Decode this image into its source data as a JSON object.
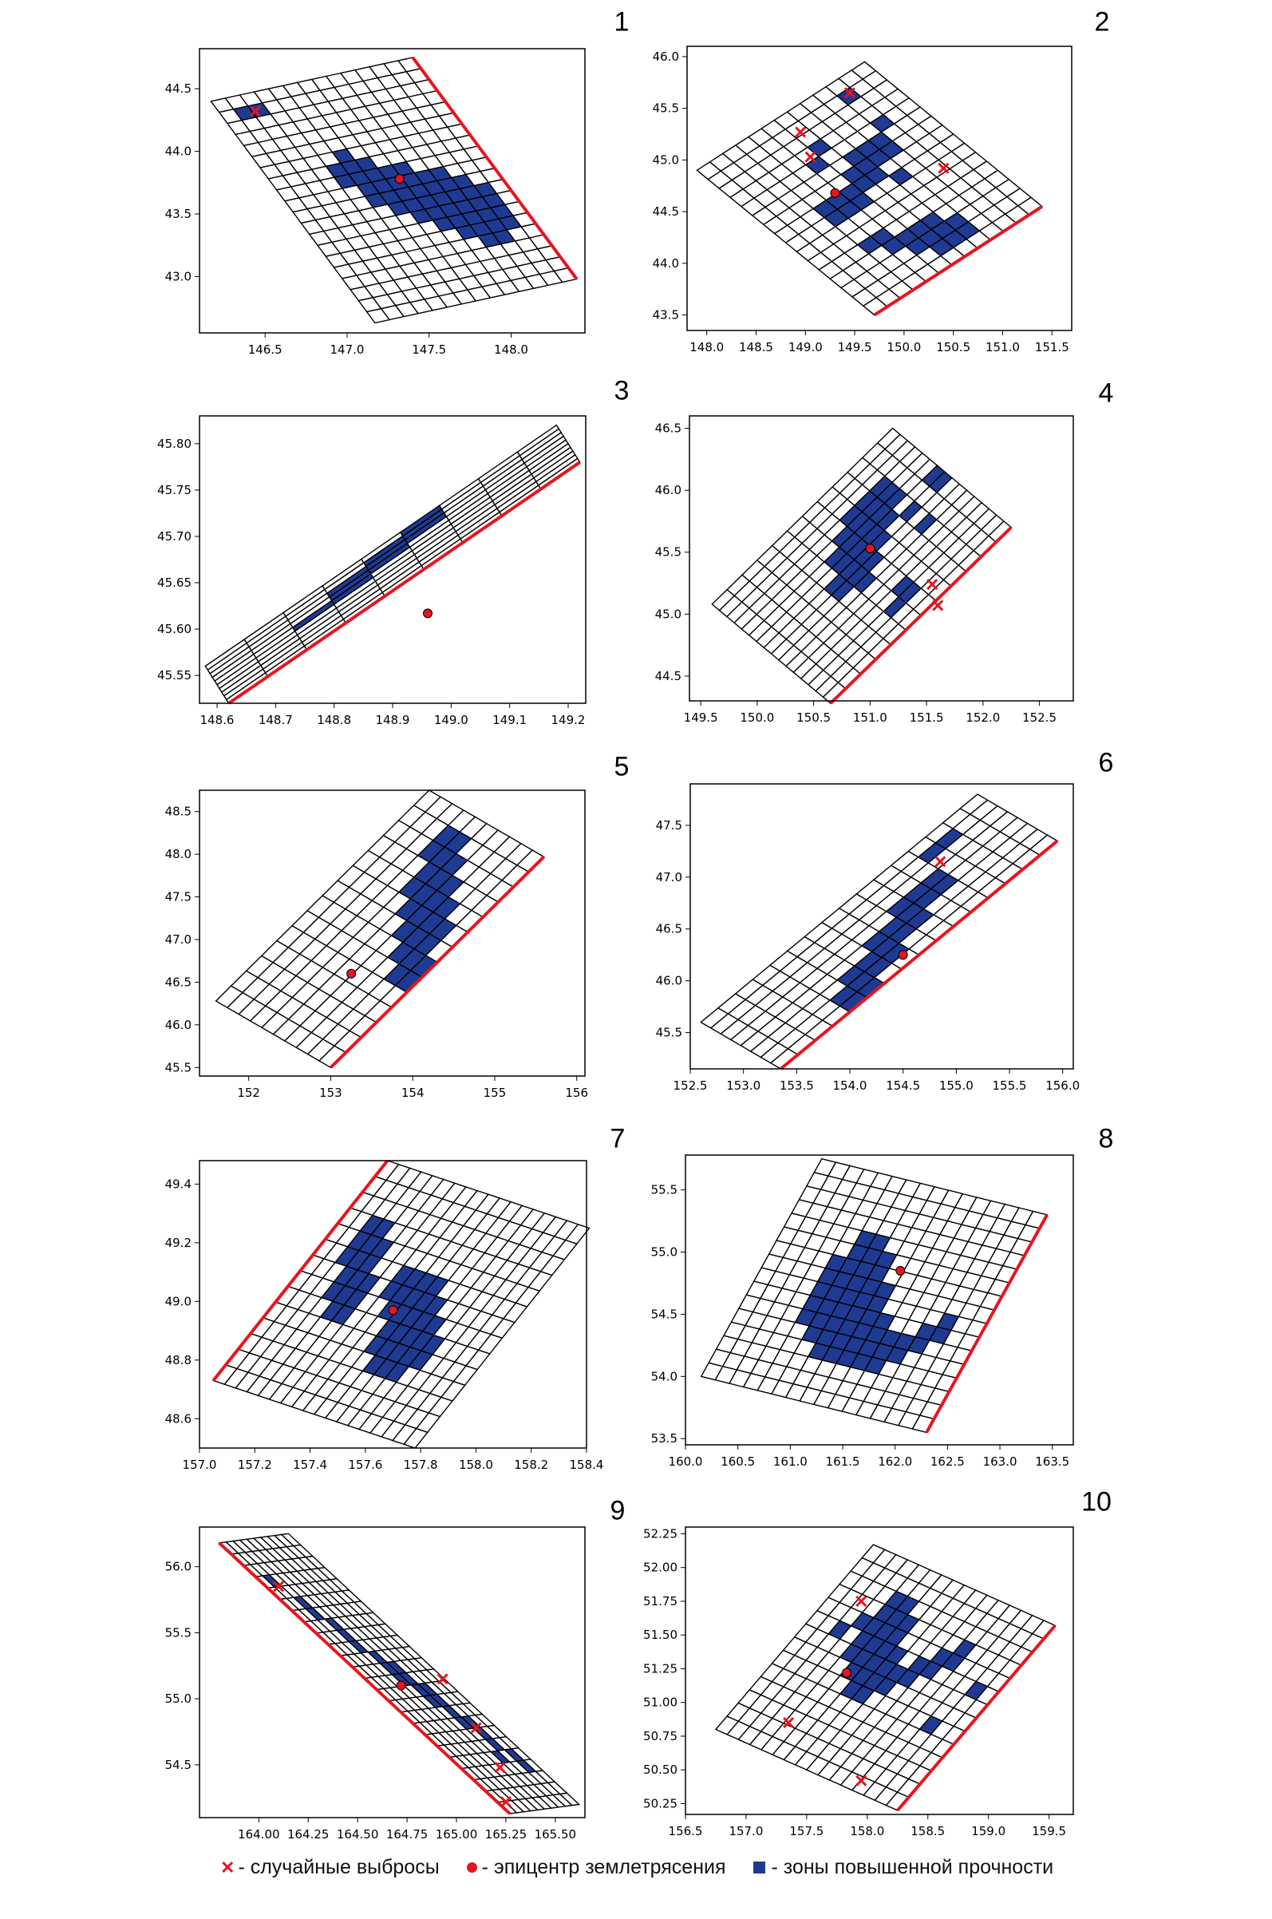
{
  "colors": {
    "zone": "#1f3a93",
    "fault": "#e8141e",
    "epicenter": "#e8141e",
    "outlier": "#e8141e",
    "grid": "#000000"
  },
  "legend": {
    "outliers": "- случайные выбросы",
    "epicenter": "- эпицентр землетрясения",
    "zones": "- зоны повышенной прочности"
  },
  "chart_data": [
    {
      "type": "heatmap",
      "label": "1",
      "xlim": [
        146.1,
        148.45
      ],
      "ylim": [
        42.55,
        44.82
      ],
      "xticks": [
        "146.5",
        "147.0",
        "147.5",
        "148.0"
      ],
      "yticks": [
        "43.0",
        "43.5",
        "44.0",
        "44.5"
      ],
      "grid": {
        "origin": [
          146.17,
          44.4
        ],
        "col_end": [
          147.4,
          44.75
        ],
        "row_end": [
          147.17,
          42.63
        ],
        "rows": 20,
        "cols": 14
      },
      "fault_edge": "col_end-far",
      "epicenter": [
        147.32,
        43.78
      ],
      "outliers": [
        [
          146.44,
          44.32
        ]
      ],
      "zone_cells": [
        [
          1,
          1,
          2
        ],
        [
          6,
          5,
          5
        ],
        [
          7,
          4,
          6
        ],
        [
          8,
          4,
          8
        ],
        [
          9,
          5,
          10
        ],
        [
          10,
          5,
          11
        ],
        [
          11,
          6,
          12
        ],
        [
          12,
          7,
          12
        ],
        [
          13,
          8,
          12
        ],
        [
          14,
          9,
          12
        ],
        [
          15,
          10,
          11
        ]
      ]
    },
    {
      "type": "heatmap",
      "label": "2",
      "xlim": [
        147.8,
        151.7
      ],
      "ylim": [
        43.35,
        46.1
      ],
      "xticks": [
        "148.0",
        "148.5",
        "149.0",
        "149.5",
        "150.0",
        "150.5",
        "151.0",
        "151.5"
      ],
      "yticks": [
        "43.5",
        "44.0",
        "44.5",
        "45.0",
        "45.5",
        "46.0"
      ],
      "grid": {
        "origin": [
          147.9,
          44.9
        ],
        "col_end": [
          149.6,
          45.95
        ],
        "row_end": [
          149.7,
          43.5
        ],
        "rows": 16,
        "cols": 13
      },
      "fault_edge": "row_end-far",
      "epicenter": [
        149.3,
        44.68
      ],
      "outliers": [
        [
          149.45,
          45.65
        ],
        [
          148.95,
          45.27
        ],
        [
          149.05,
          45.03
        ],
        [
          150.4,
          44.92
        ]
      ],
      "zone_cells": [
        [
          1,
          10,
          10
        ],
        [
          3,
          6,
          6
        ],
        [
          4,
          5,
          5
        ],
        [
          4,
          10,
          10
        ],
        [
          5,
          7,
          9
        ],
        [
          6,
          6,
          9
        ],
        [
          7,
          3,
          7
        ],
        [
          8,
          3,
          5
        ],
        [
          8,
          8,
          8
        ],
        [
          11,
          3,
          4
        ],
        [
          12,
          4,
          7
        ],
        [
          13,
          5,
          8
        ],
        [
          14,
          6,
          8
        ]
      ]
    },
    {
      "type": "heatmap",
      "label": "3",
      "xlim": [
        148.57,
        149.23
      ],
      "ylim": [
        45.52,
        45.83
      ],
      "xticks": [
        "148.6",
        "148.7",
        "148.8",
        "148.9",
        "149.0",
        "149.1",
        "149.2"
      ],
      "yticks": [
        "45.55",
        "45.60",
        "45.65",
        "45.70",
        "45.75",
        "45.80"
      ],
      "grid": {
        "origin": [
          148.58,
          45.56
        ],
        "col_end": [
          149.18,
          45.82
        ],
        "row_end": [
          148.62,
          45.52
        ],
        "rows": 10,
        "cols": 9
      },
      "fault_edge": "row_end-far",
      "epicenter": [
        148.96,
        45.617
      ],
      "outliers": [],
      "zone_cells": [
        [
          0,
          5,
          5
        ],
        [
          1,
          4,
          5
        ],
        [
          2,
          3,
          5
        ],
        [
          3,
          3,
          4
        ],
        [
          4,
          2,
          3
        ]
      ]
    },
    {
      "type": "heatmap",
      "label": "4",
      "xlim": [
        149.4,
        152.8
      ],
      "ylim": [
        44.3,
        46.6
      ],
      "xticks": [
        "149.5",
        "150.0",
        "150.5",
        "151.0",
        "151.5",
        "152.0",
        "152.5"
      ],
      "yticks": [
        "44.5",
        "45.0",
        "45.5",
        "46.0",
        "46.5"
      ],
      "grid": {
        "origin": [
          149.6,
          45.08
        ],
        "col_end": [
          151.2,
          46.5
        ],
        "row_end": [
          150.65,
          44.28
        ],
        "rows": 16,
        "cols": 12
      },
      "fault_edge": "row_end-far",
      "epicenter": [
        151.0,
        45.53
      ],
      "outliers": [
        [
          151.55,
          45.24
        ],
        [
          151.6,
          45.07
        ]
      ],
      "zone_cells": [
        [
          3,
          7,
          9
        ],
        [
          4,
          6,
          9
        ],
        [
          5,
          5,
          9
        ],
        [
          6,
          5,
          8
        ],
        [
          7,
          4,
          7
        ],
        [
          8,
          4,
          6
        ],
        [
          9,
          5,
          5
        ],
        [
          7,
          9,
          9
        ],
        [
          9,
          9,
          9
        ],
        [
          12,
          6,
          6
        ],
        [
          13,
          5,
          6
        ],
        [
          6,
          11,
          11
        ],
        [
          7,
          11,
          11
        ]
      ]
    },
    {
      "type": "heatmap",
      "label": "5",
      "xlim": [
        151.4,
        156.1
      ],
      "ylim": [
        45.4,
        48.75
      ],
      "xticks": [
        "152",
        "153",
        "154",
        "155",
        "156"
      ],
      "yticks": [
        "45.5",
        "46.0",
        "46.5",
        "47.0",
        "47.5",
        "48.0",
        "48.5"
      ],
      "grid": {
        "origin": [
          151.6,
          46.28
        ],
        "col_end": [
          154.2,
          48.75
        ],
        "row_end": [
          153.0,
          45.5
        ],
        "rows": 10,
        "cols": 14
      },
      "fault_edge": "row_end-far",
      "epicenter": [
        153.25,
        46.6
      ],
      "outliers": [],
      "zone_cells": [
        [
          3,
          11,
          12
        ],
        [
          4,
          9,
          12
        ],
        [
          5,
          8,
          11
        ],
        [
          6,
          7,
          10
        ],
        [
          7,
          6,
          9
        ],
        [
          8,
          5,
          8
        ],
        [
          9,
          5,
          6
        ]
      ]
    },
    {
      "type": "heatmap",
      "label": "6",
      "xlim": [
        152.5,
        156.1
      ],
      "ylim": [
        45.15,
        47.9
      ],
      "xticks": [
        "152.5",
        "153.0",
        "153.5",
        "154.0",
        "154.5",
        "155.0",
        "155.5",
        "156.0"
      ],
      "yticks": [
        "45.5",
        "46.0",
        "46.5",
        "47.0",
        "47.5"
      ],
      "grid": {
        "origin": [
          152.6,
          45.6
        ],
        "col_end": [
          155.2,
          47.8
        ],
        "row_end": [
          153.35,
          45.15
        ],
        "rows": 8,
        "cols": 16
      },
      "fault_edge": "row_end-far",
      "epicenter": [
        154.5,
        46.25
      ],
      "outliers": [
        [
          154.85,
          47.15
        ]
      ],
      "zone_cells": [
        [
          1,
          12,
          13
        ],
        [
          3,
          9,
          11
        ],
        [
          4,
          7,
          11
        ],
        [
          5,
          5,
          9
        ],
        [
          6,
          4,
          7
        ],
        [
          7,
          4,
          5
        ]
      ]
    },
    {
      "type": "heatmap",
      "label": "7",
      "xlim": [
        157.0,
        158.4
      ],
      "ylim": [
        48.5,
        49.48
      ],
      "xticks": [
        "157.0",
        "157.2",
        "157.4",
        "157.6",
        "157.8",
        "158.0",
        "158.2",
        "158.4"
      ],
      "yticks": [
        "48.6",
        "48.8",
        "49.0",
        "49.2",
        "49.4"
      ],
      "grid": {
        "origin": [
          157.05,
          48.73
        ],
        "col_end": [
          157.68,
          49.48
        ],
        "row_end": [
          157.78,
          48.5
        ],
        "rows": 18,
        "cols": 14
      },
      "fault_edge": "origin-col_end",
      "epicenter": [
        157.7,
        48.97
      ],
      "outliers": [],
      "zone_cells": [
        [
          2,
          8,
          10
        ],
        [
          3,
          6,
          10
        ],
        [
          4,
          5,
          9
        ],
        [
          5,
          5,
          7
        ],
        [
          7,
          7,
          8
        ],
        [
          8,
          6,
          8
        ],
        [
          9,
          4,
          8
        ],
        [
          10,
          3,
          8
        ],
        [
          11,
          3,
          7
        ],
        [
          12,
          3,
          6
        ],
        [
          13,
          4,
          5
        ]
      ]
    },
    {
      "type": "heatmap",
      "label": "8",
      "xlim": [
        160.0,
        163.7
      ],
      "ylim": [
        53.45,
        55.78
      ],
      "xticks": [
        "160.0",
        "160.5",
        "161.0",
        "161.5",
        "162.0",
        "162.5",
        "163.0",
        "163.5"
      ],
      "yticks": [
        "53.5",
        "54.0",
        "54.5",
        "55.0",
        "55.5"
      ],
      "grid": {
        "origin": [
          160.15,
          54.0
        ],
        "col_end": [
          161.3,
          55.75
        ],
        "row_end": [
          162.3,
          53.55
        ],
        "rows": 16,
        "cols": 16
      },
      "fault_edge": "row_end-far",
      "epicenter": [
        162.05,
        54.85
      ],
      "outliers": [],
      "zone_cells": [
        [
          4,
          5,
          9
        ],
        [
          5,
          4,
          11
        ],
        [
          6,
          3,
          11
        ],
        [
          7,
          3,
          10
        ],
        [
          8,
          3,
          8
        ],
        [
          9,
          3,
          6
        ],
        [
          10,
          3,
          5
        ],
        [
          11,
          4,
          5
        ],
        [
          12,
          5,
          6
        ],
        [
          13,
          6,
          7
        ]
      ]
    },
    {
      "type": "heatmap",
      "label": "9",
      "xlim": [
        163.7,
        165.65
      ],
      "ylim": [
        54.1,
        56.3
      ],
      "xticks": [
        "164.00",
        "164.25",
        "164.50",
        "164.75",
        "165.00",
        "165.25",
        "165.50"
      ],
      "yticks": [
        "54.5",
        "55.0",
        "55.5",
        "56.0"
      ],
      "grid": {
        "origin": [
          163.8,
          56.18
        ],
        "col_end": [
          165.27,
          54.13
        ],
        "row_end": [
          164.15,
          56.25
        ],
        "rows": 10,
        "cols": 24
      },
      "fault_edge": "origin-col_end",
      "epicenter": [
        164.72,
        55.1
      ],
      "outliers": [
        [
          164.1,
          55.85
        ],
        [
          164.93,
          55.15
        ],
        [
          165.1,
          54.78
        ],
        [
          165.22,
          54.48
        ],
        [
          165.25,
          54.22
        ]
      ],
      "zone_cells": [
        [
          1,
          3,
          3
        ],
        [
          2,
          5,
          6
        ],
        [
          3,
          7,
          9
        ],
        [
          4,
          10,
          12
        ],
        [
          5,
          11,
          14
        ],
        [
          6,
          13,
          16
        ],
        [
          6,
          19,
          19
        ],
        [
          7,
          16,
          18
        ],
        [
          8,
          19,
          20
        ]
      ]
    },
    {
      "type": "heatmap",
      "label": "10",
      "xlim": [
        156.5,
        159.7
      ],
      "ylim": [
        50.17,
        52.3
      ],
      "xticks": [
        "156.5",
        "157.0",
        "157.5",
        "158.0",
        "158.5",
        "159.0",
        "159.5"
      ],
      "yticks": [
        "50.25",
        "50.50",
        "50.75",
        "51.00",
        "51.25",
        "51.50",
        "51.75",
        "52.00",
        "52.25"
      ],
      "grid": {
        "origin": [
          156.75,
          50.8
        ],
        "col_end": [
          158.05,
          52.17
        ],
        "row_end": [
          158.25,
          50.2
        ],
        "rows": 16,
        "cols": 14
      },
      "fault_edge": "row_end-far",
      "epicenter": [
        157.83,
        51.22
      ],
      "outliers": [
        [
          157.95,
          51.75
        ],
        [
          157.35,
          50.85
        ],
        [
          157.95,
          50.42
        ]
      ],
      "zone_cells": [
        [
          2,
          8,
          8
        ],
        [
          3,
          9,
          9
        ],
        [
          4,
          7,
          11
        ],
        [
          5,
          6,
          11
        ],
        [
          6,
          5,
          10
        ],
        [
          7,
          5,
          8
        ],
        [
          8,
          6,
          7
        ],
        [
          9,
          7,
          8
        ],
        [
          10,
          8,
          9
        ],
        [
          11,
          9,
          10
        ],
        [
          13,
          5,
          5
        ],
        [
          14,
          8,
          8
        ]
      ]
    }
  ]
}
